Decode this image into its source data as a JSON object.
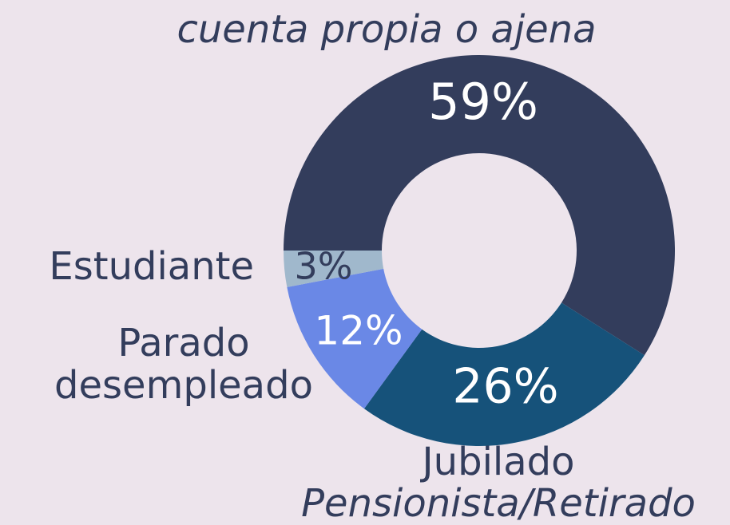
{
  "chart_data": {
    "type": "donut",
    "categories": [
      [
        "cuenta propia o ajena"
      ],
      [
        "Jubilado",
        "Pensionista/Retirado"
      ],
      [
        "Parado",
        "desempleado"
      ],
      [
        "Estudiante"
      ]
    ],
    "values": [
      59,
      26,
      12,
      3
    ],
    "value_labels": [
      "59%",
      "26%",
      "12%",
      "3%"
    ],
    "colors": [
      "#333d5c",
      "#16527a",
      "#6a88e6",
      "#a0b8cc"
    ]
  }
}
